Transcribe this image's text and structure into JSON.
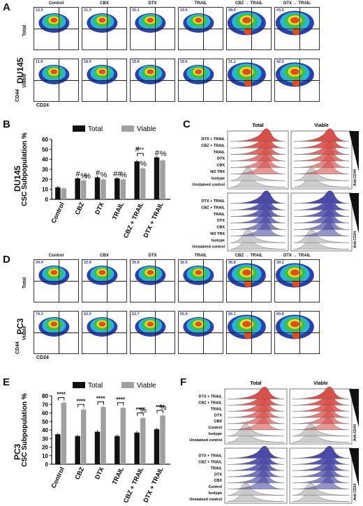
{
  "panels": {
    "A": "A",
    "B": "B",
    "C": "C",
    "D": "D",
    "E": "E",
    "F": "F"
  },
  "cell_lines": {
    "top": "DU145",
    "bottom": "PC3"
  },
  "row_labels": {
    "total": "Total",
    "viable": "Viable",
    "cd44": "CD44",
    "cd24": "CD24"
  },
  "treatments": [
    "Control",
    "CBX",
    "DTX",
    "TRAIL",
    "CBZ → TRAIL",
    "DTX → TRAIL"
  ],
  "flow_A": {
    "total_pct": [
      "12.5",
      "21.3",
      "20.1",
      "19.6",
      "38.6",
      "43.5"
    ],
    "viable_pct": [
      "11.6",
      "18.9",
      "19.8",
      "19.6",
      "31.1",
      "42.2"
    ]
  },
  "flow_D": {
    "total_pct": [
      "34.4",
      "32.8",
      "35.8",
      "32.6",
      "36.8",
      "39.2"
    ],
    "viable_pct": [
      "74.3",
      "62.0",
      "62.7",
      "65.9",
      "56.1",
      "60.8"
    ]
  },
  "chart_data": [
    {
      "type": "bar",
      "panel": "B",
      "ylabel": "CSC Subpopulation %",
      "categories": [
        "Control",
        "CBZ",
        "DTX",
        "TRAIL",
        "CBZ + TRAIL",
        "DTX + TRAIL"
      ],
      "series": [
        {
          "name": "Total",
          "values": [
            12,
            21,
            22,
            21,
            38,
            42
          ],
          "color": "#111111"
        },
        {
          "name": "Viable",
          "values": [
            11,
            19,
            20,
            20,
            31,
            39
          ],
          "color": "#a0a0a0"
        }
      ],
      "yticks": [
        "0",
        "10",
        "20",
        "30",
        "40",
        "50",
        "60"
      ],
      "ylim": [
        0,
        60
      ],
      "annotations": [
        "#",
        "%",
        "%",
        "#",
        "%",
        "##",
        "%",
        "#",
        "%",
        "#",
        "%",
        "***"
      ]
    },
    {
      "type": "bar",
      "panel": "E",
      "ylabel": "CSC Subpopulation %",
      "categories": [
        "Control",
        "CBZ",
        "DTX",
        "TRAIL",
        "CBZ + TRAIL",
        "DTX + TRAIL"
      ],
      "series": [
        {
          "name": "Total",
          "values": [
            35,
            33,
            38,
            33,
            37,
            41
          ],
          "color": "#111111"
        },
        {
          "name": "Viable",
          "values": [
            72,
            64,
            67,
            66,
            54,
            57
          ],
          "color": "#a0a0a0"
        }
      ],
      "yticks": [
        "0",
        "10",
        "20",
        "30",
        "40",
        "50",
        "60",
        "70",
        "80"
      ],
      "ylim": [
        0,
        80
      ],
      "annotations": [
        "****",
        "****",
        "****",
        "****",
        "****",
        "****",
        "%",
        "%"
      ]
    }
  ],
  "histo_C": {
    "col_titles": [
      "Total",
      "Viable"
    ],
    "labels": [
      "DTX + TRAIL",
      "CBZ + TRAIL",
      "TRAIL",
      "DTX",
      "CBX",
      "NO TRX",
      "Isotype",
      "Unstained control"
    ],
    "side_top": "Anti-CD44",
    "side_bottom": "Anti-CD24"
  },
  "histo_F": {
    "col_titles": [
      "Total",
      "Viable"
    ],
    "labels": [
      "DTX + TRAIL",
      "CBZ + TRAIL",
      "TRAIL",
      "DTX",
      "CBX",
      "Control",
      "Isotype",
      "Unstained control"
    ],
    "side_top": "Anti-CD44",
    "side_bottom": "Anti-CD24"
  },
  "colors": {
    "red": "#d9504a",
    "blue": "#4a4aa8",
    "gray": "#a0a0a0",
    "black": "#111111"
  }
}
